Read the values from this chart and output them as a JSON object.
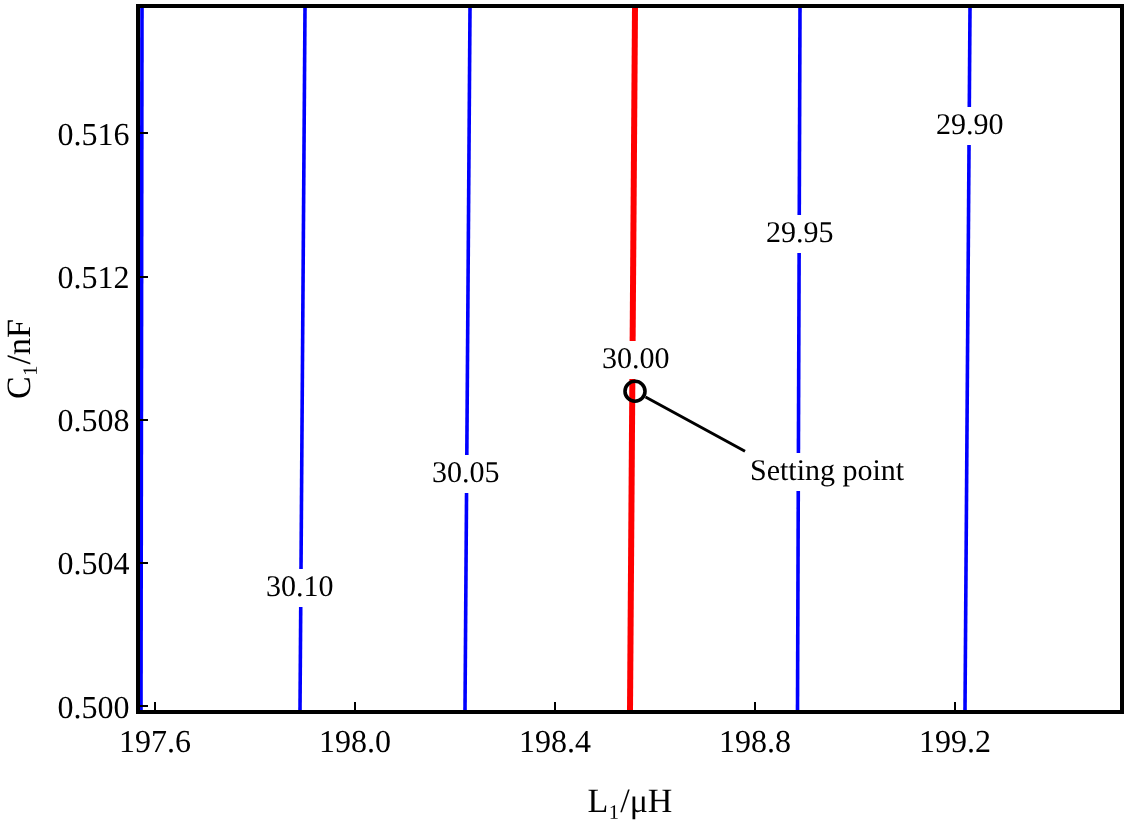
{
  "chart_data": {
    "type": "line",
    "xlabel": "L₁/μH",
    "ylabel": "C₁/nF",
    "xlim": [
      197.57,
      199.53
    ],
    "xticks": [
      {
        "value": 197.6,
        "label": "197.6"
      },
      {
        "value": 198.0,
        "label": "198.0"
      },
      {
        "value": 198.4,
        "label": "198.4"
      },
      {
        "value": 198.8,
        "label": "198.8"
      },
      {
        "value": 199.2,
        "label": "199.2"
      }
    ],
    "ylim": [
      0.4999,
      0.5195
    ],
    "yticks": [
      {
        "value": 0.5,
        "label": "0.500"
      },
      0.504,
      0.508,
      0.512,
      0.516
    ],
    "grid": false,
    "marker": "none",
    "line_style": "solid",
    "series": [
      {
        "color": "#0000ff",
        "x": [
          197.572,
          197.574
        ],
        "values": [
          0.4999,
          0.5195
        ]
      },
      {
        "color": "#0000ff",
        "x": [
          197.89,
          197.9
        ],
        "values": [
          0.4999,
          0.5195
        ]
      },
      {
        "color": "#0000ff",
        "x": [
          198.22,
          198.23
        ],
        "values": [
          0.4999,
          0.5195
        ]
      },
      {
        "color": "#ff0000",
        "x": [
          198.55,
          198.56
        ],
        "values": [
          0.4999,
          0.5195
        ]
      },
      {
        "color": "#0000ff",
        "x": [
          198.885,
          198.89
        ],
        "values": [
          0.4999,
          0.5195
        ]
      },
      {
        "color": "#0000ff",
        "x": [
          199.22,
          199.23
        ],
        "values": [
          0.4999,
          0.5195
        ]
      },
      {
        "type": "scatter",
        "marker": "circle",
        "color": "#000000",
        "x": [
          198.56
        ],
        "values": [
          0.5088
        ]
      }
    ],
    "annotations": [
      {
        "text": "30.10",
        "x": 197.89,
        "y": 0.5033
      },
      {
        "text": "30.05",
        "x": 198.22,
        "y": 0.5065
      },
      {
        "text": "30.00",
        "x": 198.56,
        "y": 0.5097
      },
      {
        "text": "29.95",
        "x": 198.89,
        "y": 0.5132
      },
      {
        "text": "29.90",
        "x": 199.23,
        "y": 0.5162
      },
      {
        "text": "Setting point",
        "x": 198.56,
        "y": 0.5088
      }
    ]
  }
}
